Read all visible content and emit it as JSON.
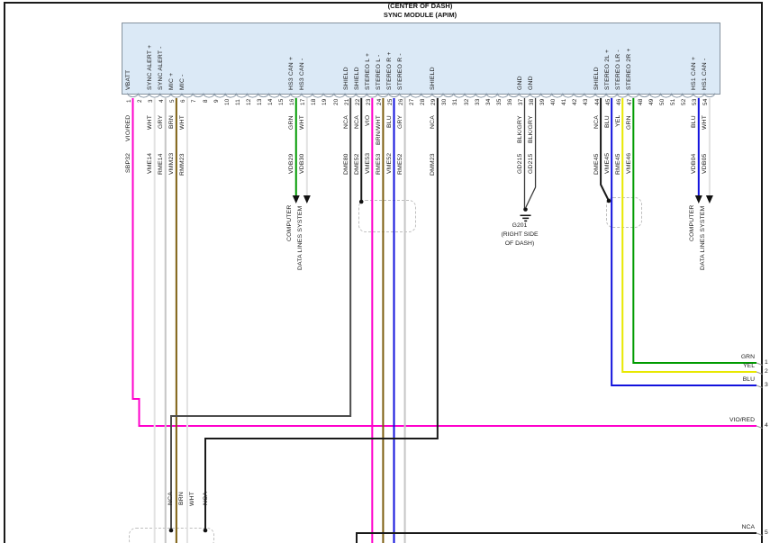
{
  "page": {
    "title_line1": "(CENTER OF DASH)",
    "title_line2": "SYNC MODULE (APIM)"
  },
  "module": {
    "pin_count": 54,
    "pin_labels": {
      "1": "VBATT",
      "3": "SYNC ALERT +",
      "4": "SYNC ALERT -",
      "5": "MIC +",
      "6": "MIC -",
      "16": "HS3 CAN +",
      "17": "HS3 CAN -",
      "21": "SHIELD",
      "22": "SHIELD",
      "23": "STEREO L +",
      "24": "STEREO L -",
      "25": "STEREO R +",
      "26": "STEREO R -",
      "29": "SHIELD",
      "37": "GND",
      "38": "GND",
      "44": "SHIELD",
      "45": "STEREO 2L +",
      "46": "STEREO LR -",
      "47": "STEREO 2R +",
      "53": "HS1 CAN +",
      "54": "HS1 CAN -"
    }
  },
  "wires": [
    {
      "pin": 1,
      "color_name": "VIO/RED",
      "code": "SBP32",
      "color": "#ff00cc"
    },
    {
      "pin": 3,
      "color_name": "WHT",
      "code": "VME14",
      "color": "#e2e2e2"
    },
    {
      "pin": 4,
      "color_name": "GRY",
      "code": "RME14",
      "color": "#c6c6c6"
    },
    {
      "pin": 5,
      "color_name": "BRN",
      "code": "VMM23",
      "color": "#7d5f10"
    },
    {
      "pin": 6,
      "color_name": "WHT",
      "code": "RMM23",
      "color": "#e2e2e2"
    },
    {
      "pin": 16,
      "color_name": "GRN",
      "code": "VDB29",
      "color": "#009b00"
    },
    {
      "pin": 17,
      "color_name": "WHT",
      "code": "VDB30",
      "color": "#e2e2e2"
    },
    {
      "pin": 21,
      "color_name": "NCA",
      "code": "DME80",
      "color": "#4d4d4d"
    },
    {
      "pin": 22,
      "color_name": "NCA",
      "code": "DME52",
      "color": "#1a1a1a"
    },
    {
      "pin": 23,
      "color_name": "VIO",
      "code": "VME53",
      "color": "#ff00cc"
    },
    {
      "pin": 24,
      "color_name": "BRN/WHT",
      "code": "RME53",
      "color": "#7d5f10"
    },
    {
      "pin": 25,
      "color_name": "BLU",
      "code": "VME52",
      "color": "#1212dd"
    },
    {
      "pin": 26,
      "color_name": "GRY",
      "code": "RME52",
      "color": "#c6c6c6"
    },
    {
      "pin": 29,
      "color_name": "NCA",
      "code": "DMM23",
      "color": "#1a1a1a"
    },
    {
      "pin": 37,
      "color_name": "BLK/GRY",
      "code": "GD215",
      "color": "#3a3a3a"
    },
    {
      "pin": 38,
      "color_name": "BLK/GRY",
      "code": "GD215",
      "color": "#3a3a3a"
    },
    {
      "pin": 44,
      "color_name": "NCA",
      "code": "DME45",
      "color": "#1a1a1a"
    },
    {
      "pin": 45,
      "color_name": "BLU",
      "code": "VME45",
      "color": "#1212dd"
    },
    {
      "pin": 46,
      "color_name": "YEL",
      "code": "RME45",
      "color": "#e8e800"
    },
    {
      "pin": 47,
      "color_name": "GRN",
      "code": "VME46",
      "color": "#009b00"
    },
    {
      "pin": 53,
      "color_name": "BLU",
      "code": "VDB04",
      "color": "#1212dd"
    },
    {
      "pin": 54,
      "color_name": "WHT",
      "code": "VDB05",
      "color": "#e2e2e2"
    }
  ],
  "computer_system_label": {
    "line1": "COMPUTER",
    "line2": "DATA LINES SYSTEM"
  },
  "ground": {
    "name": "G201",
    "loc1": "(RIGHT SIDE",
    "loc2": "OF DASH)"
  },
  "exits": [
    {
      "num": "1",
      "label": "GRN",
      "color": "#009b00"
    },
    {
      "num": "2",
      "label": "YEL",
      "color": "#e8e800"
    },
    {
      "num": "3",
      "label": "BLU",
      "color": "#1212dd"
    },
    {
      "num": "4",
      "label": "VIO/RED",
      "color": "#ff00cc"
    },
    {
      "num": "5",
      "label": "NCA",
      "color": "#1a1a1a"
    }
  ],
  "bottom_wire_labels": [
    "NCA",
    "BRN",
    "WHT",
    "NCA"
  ]
}
